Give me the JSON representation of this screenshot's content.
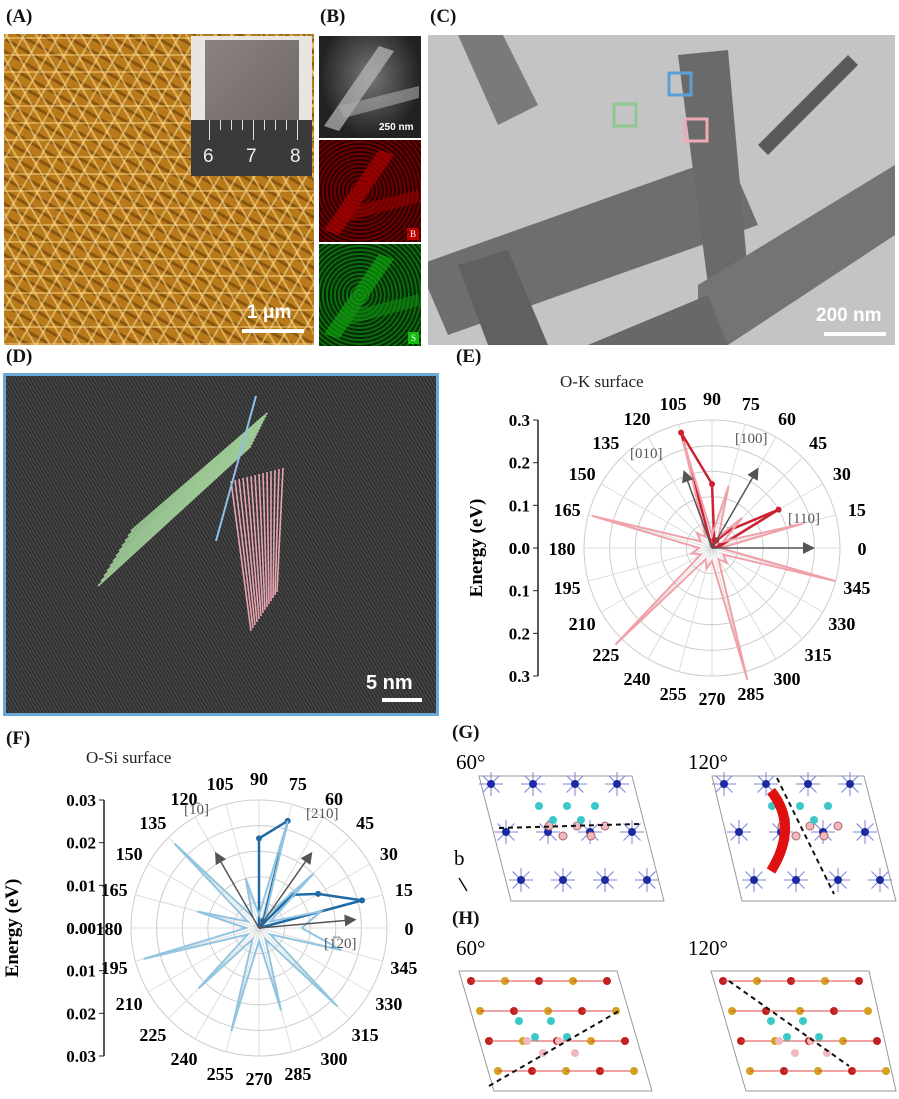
{
  "labels": {
    "a": "(A)",
    "b": "(B)",
    "c": "(C)",
    "d": "(D)",
    "e": "(E)",
    "f": "(F)",
    "g": "(G)",
    "h": "(H)"
  },
  "panelA": {
    "scale": "1 μm",
    "ruler": [
      "6",
      "7",
      "8"
    ]
  },
  "panelB": {
    "scale": "250 nm",
    "el2": "B",
    "el3": "S"
  },
  "panelC": {
    "scale": "200 nm",
    "boxColors": [
      "#8fc98f",
      "#5aa0d8",
      "#f0aab5"
    ]
  },
  "panelD": {
    "scale": "5 nm"
  },
  "panelE": {
    "title": "O-K surface",
    "ylabel": "Energy (eV)",
    "ticks": [
      "0.3",
      "0.2",
      "0.1",
      "0.0",
      "0.0",
      "0.1",
      "0.2",
      "0.3"
    ],
    "dirs": [
      "[010]",
      "[100]",
      "[110]"
    ]
  },
  "panelF": {
    "title": "O-Si surface",
    "ylabel": "Energy (eV)",
    "ticks": [
      "0.03",
      "0.02",
      "0.01",
      "0.00",
      "0.00",
      "0.01",
      "0.02",
      "0.03"
    ],
    "dirs": [
      "[1̅0]",
      "[210]",
      "[1̅20]"
    ]
  },
  "panelG": {
    "a1": "60°",
    "a2": "120°",
    "axis": "b"
  },
  "panelH": {
    "a1": "60°",
    "a2": "120°"
  },
  "chart_data": [
    {
      "type": "line",
      "subtype": "polar",
      "title": "O-K surface",
      "ylabel": "Energy (eV)",
      "rmax": 0.3,
      "angles": [
        0,
        15,
        30,
        45,
        60,
        75,
        90,
        105,
        120,
        135,
        150,
        165,
        180,
        195,
        210,
        225,
        240,
        255,
        270,
        285,
        300,
        315,
        330,
        345
      ],
      "series": [
        {
          "color": "#cc2233",
          "angles": [
            75,
            90,
            105
          ],
          "r": [
            0.02,
            0.15,
            0.28
          ]
        },
        {
          "color": "#cc2233",
          "angles": [
            15,
            30,
            45,
            60
          ],
          "r": [
            0.02,
            0.18,
            0.06,
            0.02
          ]
        },
        {
          "color": "#f0a0a8",
          "angles": [
            0,
            15,
            30,
            45,
            60,
            75,
            90,
            105,
            120,
            135,
            150,
            165,
            180,
            195,
            210,
            225,
            240,
            255,
            270,
            285,
            300,
            315,
            330,
            345,
            360
          ],
          "r": [
            0.02,
            0.22,
            0.03,
            0.1,
            0.03,
            0.15,
            0.03,
            0.26,
            0.03,
            0.05,
            0.03,
            0.29,
            0.03,
            0.05,
            0.03,
            0.32,
            0.03,
            0.05,
            0.03,
            0.32,
            0.03,
            0.05,
            0.03,
            0.3,
            0.02
          ]
        }
      ]
    },
    {
      "type": "line",
      "subtype": "polar",
      "title": "O-Si surface",
      "ylabel": "Energy (eV)",
      "rmax": 0.03,
      "angles": [
        0,
        15,
        30,
        45,
        60,
        75,
        90,
        105,
        120,
        135,
        150,
        165,
        180,
        195,
        210,
        225,
        240,
        255,
        270,
        285,
        300,
        315,
        330,
        345
      ],
      "series": [
        {
          "color": "#1f6aa5",
          "angles": [
            60,
            75,
            90
          ],
          "r": [
            0.002,
            0.026,
            0.021
          ]
        },
        {
          "color": "#1f6aa5",
          "angles": [
            15,
            30,
            45
          ],
          "r": [
            0.025,
            0.016,
            0.011
          ]
        },
        {
          "color": "#90c4e0",
          "angles": [
            0,
            15,
            30,
            45,
            60,
            75,
            90,
            105,
            120,
            135,
            150,
            165,
            180,
            195,
            210,
            225,
            240,
            255,
            270,
            285,
            300,
            315,
            330,
            345,
            360
          ],
          "r": [
            0.01,
            0.015,
            0.003,
            0.018,
            0.003,
            0.026,
            0.003,
            0.012,
            0.003,
            0.028,
            0.003,
            0.015,
            0.003,
            0.028,
            0.003,
            0.02,
            0.003,
            0.025,
            0.003,
            0.02,
            0.003,
            0.026,
            0.003,
            0.02,
            0.01
          ]
        }
      ]
    }
  ]
}
